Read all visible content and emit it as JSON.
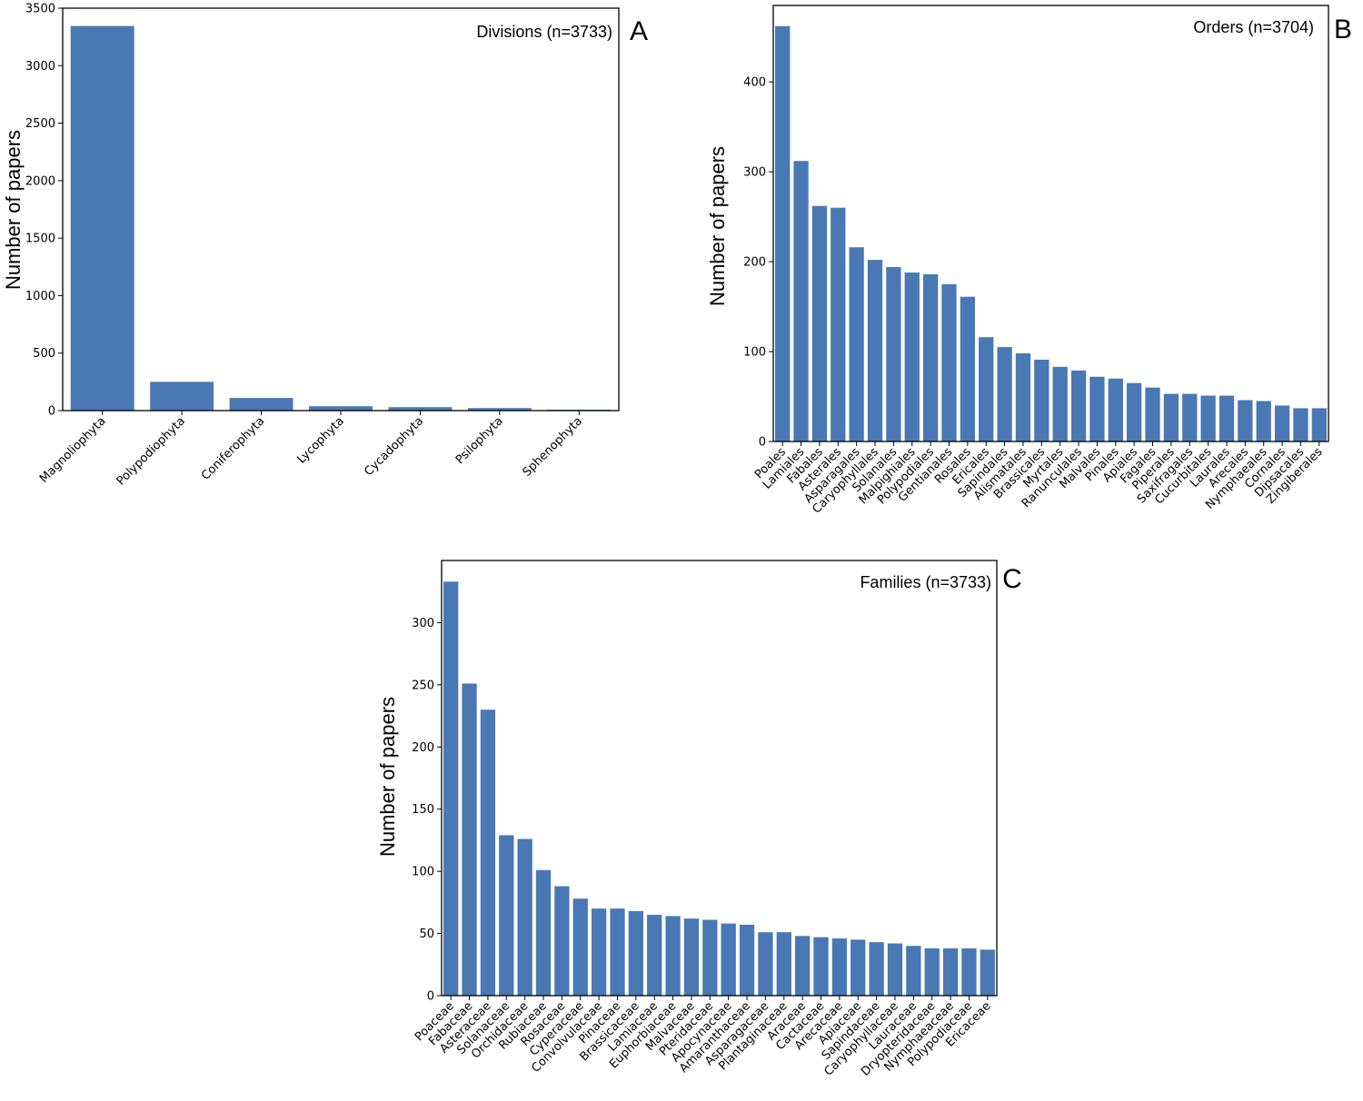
{
  "chart_data": [
    {
      "type": "bar",
      "panel_letter": "A",
      "title": "Divisions (n=3733)",
      "xlabel": "",
      "ylabel": "Number of papers",
      "ylim": [
        0,
        3500
      ],
      "yticks": [
        0,
        500,
        1000,
        1500,
        2000,
        2500,
        3000,
        3500
      ],
      "bar_color": "#4a78b4",
      "categories": [
        "Magnoliophyta",
        "Polypodiophyta",
        "Coniferophyta",
        "Lycophyta",
        "Cycadophyta",
        "Psilophyta",
        "Sphenophyta"
      ],
      "values": [
        3345,
        250,
        110,
        38,
        30,
        22,
        8
      ]
    },
    {
      "type": "bar",
      "panel_letter": "B",
      "title": "Orders (n=3704)",
      "xlabel": "",
      "ylabel": "Number of papers",
      "ylim": [
        0,
        485
      ],
      "yticks": [
        0,
        100,
        200,
        300,
        400
      ],
      "bar_color": "#4a78b4",
      "categories": [
        "Poales",
        "Lamiales",
        "Fabales",
        "Asterales",
        "Asparagales",
        "Caryophyllales",
        "Solanales",
        "Malpighiales",
        "Polypodiales",
        "Gentianales",
        "Rosales",
        "Ericales",
        "Sapindales",
        "Alismatales",
        "Brassicales",
        "Myrtales",
        "Ranunculales",
        "Malvales",
        "Pinales",
        "Apiales",
        "Fagales",
        "Piperales",
        "Saxifragales",
        "Cucurbitales",
        "Laurales",
        "Arecales",
        "Nymphaeales",
        "Cornales",
        "Dipsacales",
        "Zingiberales"
      ],
      "values": [
        462,
        312,
        262,
        260,
        216,
        202,
        194,
        188,
        186,
        175,
        161,
        116,
        105,
        98,
        91,
        83,
        79,
        72,
        70,
        65,
        60,
        53,
        53,
        51,
        51,
        46,
        45,
        40,
        37,
        37
      ]
    },
    {
      "type": "bar",
      "panel_letter": "C",
      "title": "Families (n=3733)",
      "xlabel": "",
      "ylabel": "Number of papers",
      "ylim": [
        0,
        350
      ],
      "yticks": [
        0,
        50,
        100,
        150,
        200,
        250,
        300
      ],
      "bar_color": "#4a78b4",
      "categories": [
        "Poaceae",
        "Fabaceae",
        "Asteraceae",
        "Solanaceae",
        "Orchidaceae",
        "Rubiaceae",
        "Rosaceae",
        "Cyperaceae",
        "Convolvulaceae",
        "Pinaceae",
        "Brassicaceae",
        "Lamiaceae",
        "Euphorbiaceae",
        "Malvaceae",
        "Pteridaceae",
        "Apocynaceae",
        "Amaranthaceae",
        "Asparagaceae",
        "Plantaginaceae",
        "Araceae",
        "Cactaceae",
        "Arecaceae",
        "Apiaceae",
        "Sapindaceae",
        "Caryophyllaceae",
        "Lauraceae",
        "Dryopteridaceae",
        "Nymphaeaceae",
        "Polypodiaceae",
        "Ericaceae"
      ],
      "values": [
        333,
        251,
        230,
        129,
        126,
        101,
        88,
        78,
        70,
        70,
        68,
        65,
        64,
        62,
        61,
        58,
        57,
        51,
        51,
        48,
        47,
        46,
        45,
        43,
        42,
        40,
        38,
        38,
        38,
        37
      ]
    }
  ]
}
